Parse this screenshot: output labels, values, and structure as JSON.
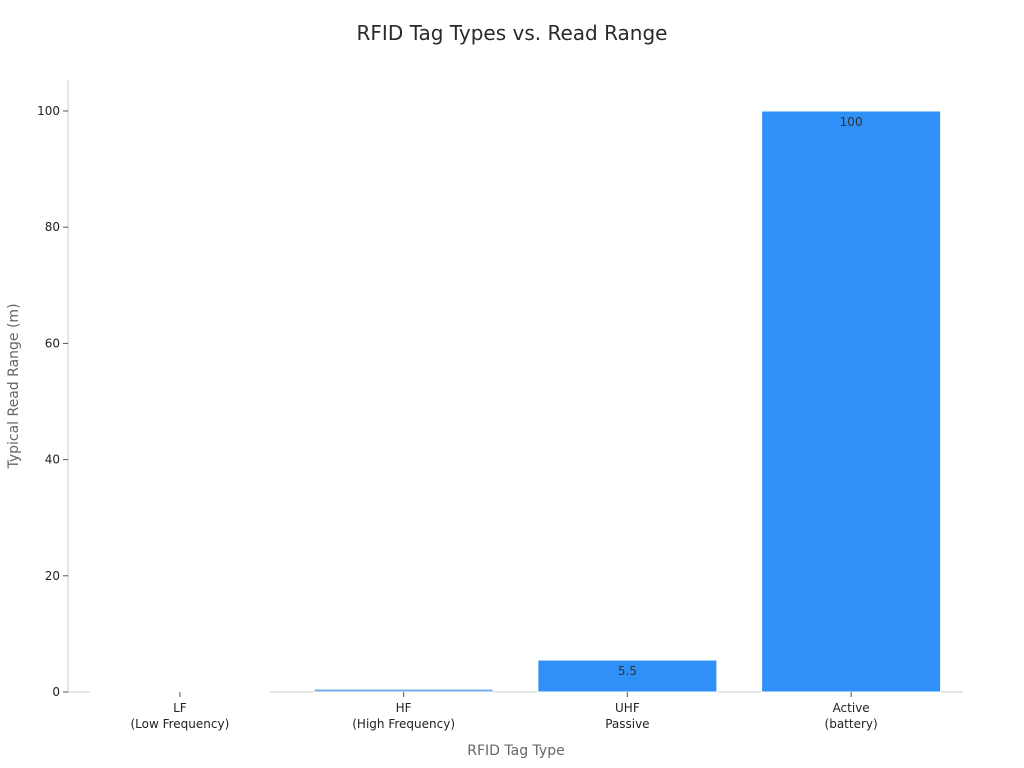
{
  "chart_data": {
    "type": "bar",
    "title": "RFID Tag Types vs. Read Range",
    "xlabel": "RFID Tag Type",
    "ylabel": "Typical Read Range (m)",
    "categories": [
      [
        "LF",
        "(Low Frequency)"
      ],
      [
        "HF",
        "(High Frequency)"
      ],
      [
        "UHF",
        "Passive"
      ],
      [
        "Active",
        "(battery)"
      ]
    ],
    "values": [
      0.1,
      0.5,
      5.5,
      100
    ],
    "data_labels": [
      "",
      "",
      "5.5",
      "100"
    ],
    "colors": [
      "#d6e6f5",
      "#6aaee9",
      "#2f90f8",
      "#2f90f8"
    ],
    "ylim": [
      0,
      105
    ],
    "yticks": [
      0,
      20,
      40,
      60,
      80,
      100
    ],
    "grid": false,
    "legend": "none"
  }
}
